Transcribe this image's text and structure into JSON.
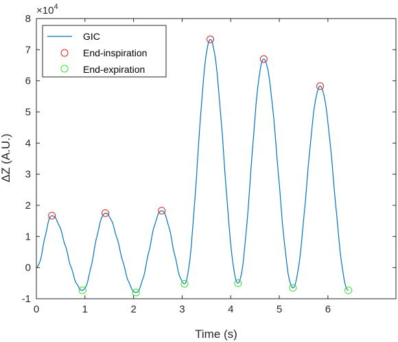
{
  "chart_data": {
    "type": "line",
    "xlabel": "Time (s)",
    "ylabel": "ΔZ (A.U.)",
    "exponent_label": "×10",
    "exponent_power": "4",
    "xlim": [
      0,
      7.4
    ],
    "ylim": [
      -1,
      8
    ],
    "x_ticks": [
      0,
      1,
      2,
      3,
      4,
      5,
      6
    ],
    "y_ticks": [
      -1,
      0,
      1,
      2,
      3,
      4,
      5,
      6,
      7,
      8
    ],
    "y_scale_factor": 10000,
    "grid": false,
    "legend_position": "top-left",
    "colors": {
      "gic": "#0072BD",
      "end_inspiration": "#e3231e",
      "end_expiration": "#2ce82c",
      "axes": "#262626"
    },
    "series": [
      {
        "name": "GIC",
        "style": "line",
        "x": [
          0,
          0.32,
          0.95,
          1.42,
          2.05,
          2.58,
          3.05,
          3.58,
          4.15,
          4.68,
          5.28,
          5.84,
          6.42
        ],
        "y": [
          0,
          16700,
          -7300,
          17500,
          -8000,
          18300,
          -5200,
          73300,
          -5000,
          67000,
          -6500,
          58300,
          -7300
        ]
      },
      {
        "name": "End-inspiration",
        "style": "markers",
        "marker": "circle",
        "x": [
          0.32,
          1.42,
          2.58,
          3.58,
          4.68,
          5.84
        ],
        "y": [
          16700,
          17500,
          18300,
          73300,
          67000,
          58300
        ]
      },
      {
        "name": "End-expiration",
        "style": "markers",
        "marker": "circle",
        "x": [
          0.95,
          2.05,
          3.05,
          4.15,
          5.28,
          6.42
        ],
        "y": [
          -7300,
          -8000,
          -5200,
          -5000,
          -6500,
          -7300
        ]
      }
    ]
  }
}
